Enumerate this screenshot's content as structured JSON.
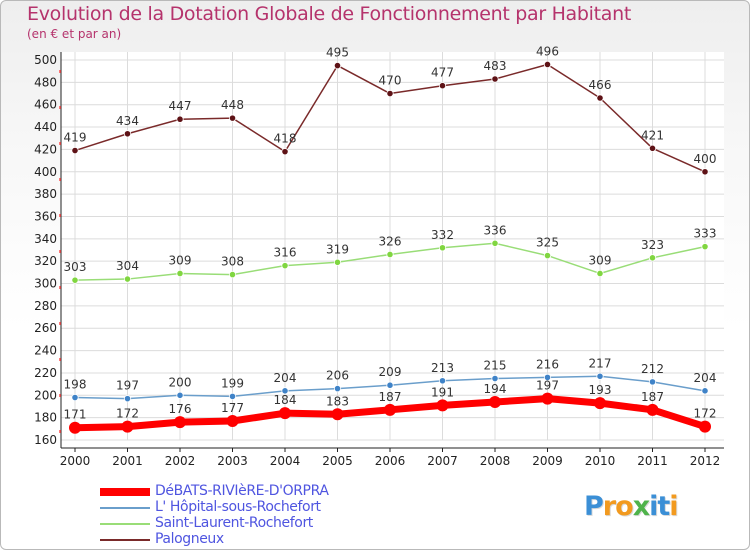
{
  "title": "Evolution de la Dotation Globale de Fonctionnement par Habitant",
  "subtitle": "(en € et par an)",
  "logo": {
    "letters": [
      "P",
      "r",
      "o",
      "x",
      "i",
      "t",
      "i"
    ],
    "colors": [
      "#3b8fd6",
      "#f29a1f",
      "#f29a1f",
      "#4fb34b",
      "#3b8fd6",
      "#3b8fd6",
      "#f29a1f"
    ]
  },
  "chart_data": {
    "type": "line",
    "x": [
      "2000",
      "2001",
      "2002",
      "2003",
      "2004",
      "2005",
      "2006",
      "2007",
      "2008",
      "2009",
      "2010",
      "2011",
      "2012"
    ],
    "ylim": [
      160,
      500
    ],
    "yticks": [
      160,
      180,
      200,
      220,
      240,
      260,
      280,
      300,
      320,
      340,
      360,
      380,
      400,
      420,
      440,
      460,
      480,
      500
    ],
    "grid": true,
    "legend_position": "bottom-left",
    "series": [
      {
        "name": "DéBATS-RIVIèRE-D'ORPRA",
        "color": "#ff0000",
        "marker": "#ff0000",
        "width": 7,
        "marker_r": 6,
        "values": [
          171,
          172,
          176,
          177,
          184,
          183,
          187,
          191,
          194,
          197,
          193,
          187,
          172
        ]
      },
      {
        "name": "L' Hôpital-sous-Rochefort",
        "color": "#6a9ecb",
        "marker": "#3f83c8",
        "width": 1.5,
        "marker_r": 3.2,
        "values": [
          198,
          197,
          200,
          199,
          204,
          206,
          209,
          213,
          215,
          216,
          217,
          212,
          204
        ]
      },
      {
        "name": "Saint-Laurent-Rochefort",
        "color": "#99dd77",
        "marker": "#80d640",
        "width": 1.5,
        "marker_r": 3.2,
        "values": [
          303,
          304,
          309,
          308,
          316,
          319,
          326,
          332,
          336,
          325,
          309,
          323,
          333
        ]
      },
      {
        "name": "Palogneux",
        "color": "#7a2a2a",
        "marker": "#5e1216",
        "width": 1.5,
        "marker_r": 3.2,
        "values": [
          419,
          434,
          447,
          448,
          418,
          495,
          470,
          477,
          483,
          496,
          466,
          421,
          400
        ]
      }
    ]
  }
}
